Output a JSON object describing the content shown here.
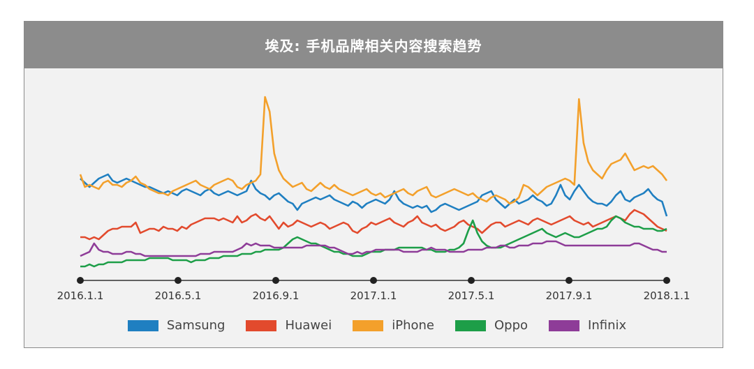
{
  "chart_data": {
    "type": "line",
    "title": "埃及: 手机品牌相关内容搜索趋势",
    "x_ticks": [
      "2016.1.1",
      "2016.5.1",
      "2016.9.1",
      "2017.1.1",
      "2017.5.1",
      "2017.9.1",
      "2018.1.1"
    ],
    "x_range": [
      "2016-01-01",
      "2018-01-01"
    ],
    "ylim": [
      0,
      100
    ],
    "grid": false,
    "legend": "bottom",
    "series": [
      {
        "name": "Samsung",
        "color": "#1f7fc1",
        "values": [
          48,
          46,
          44,
          46,
          48,
          49,
          50,
          47,
          46,
          47,
          48,
          47,
          46,
          45,
          44,
          44,
          43,
          42,
          41,
          42,
          41,
          40,
          42,
          43,
          42,
          41,
          40,
          42,
          43,
          41,
          40,
          41,
          42,
          41,
          40,
          41,
          42,
          47,
          43,
          41,
          40,
          38,
          40,
          41,
          39,
          37,
          36,
          33,
          36,
          37,
          38,
          39,
          38,
          39,
          40,
          38,
          37,
          36,
          35,
          37,
          36,
          34,
          36,
          37,
          38,
          37,
          36,
          38,
          42,
          38,
          36,
          35,
          34,
          35,
          34,
          35,
          32,
          33,
          35,
          36,
          35,
          34,
          33,
          34,
          35,
          36,
          37,
          40,
          41,
          42,
          38,
          36,
          34,
          36,
          38,
          36,
          37,
          38,
          40,
          38,
          37,
          35,
          36,
          40,
          45,
          40,
          38,
          42,
          45,
          42,
          39,
          37,
          36,
          36,
          35,
          37,
          40,
          42,
          38,
          37,
          39,
          40,
          41,
          43,
          40,
          38,
          37,
          30
        ]
      },
      {
        "name": "Huawei",
        "color": "#e24a2d",
        "values": [
          20,
          20,
          19,
          20,
          19,
          21,
          23,
          24,
          24,
          25,
          25,
          25,
          27,
          22,
          23,
          24,
          24,
          23,
          25,
          24,
          24,
          23,
          25,
          24,
          26,
          27,
          28,
          29,
          29,
          29,
          28,
          29,
          28,
          27,
          30,
          27,
          28,
          30,
          31,
          29,
          28,
          30,
          27,
          24,
          27,
          25,
          26,
          28,
          27,
          26,
          25,
          26,
          27,
          26,
          24,
          25,
          26,
          27,
          26,
          23,
          22,
          24,
          25,
          27,
          26,
          27,
          28,
          29,
          27,
          26,
          25,
          27,
          28,
          30,
          27,
          26,
          25,
          26,
          24,
          23,
          24,
          25,
          27,
          28,
          26,
          25,
          24,
          22,
          24,
          26,
          27,
          27,
          25,
          26,
          27,
          28,
          27,
          26,
          28,
          29,
          28,
          27,
          26,
          27,
          28,
          29,
          30,
          28,
          27,
          26,
          27,
          25,
          26,
          27,
          28,
          29,
          30,
          29,
          28,
          31,
          33,
          32,
          31,
          29,
          27,
          25,
          24,
          23
        ]
      },
      {
        "name": "iPhone",
        "color": "#f3a02b",
        "values": [
          50,
          44,
          45,
          44,
          43,
          46,
          47,
          45,
          45,
          44,
          46,
          47,
          49,
          46,
          45,
          43,
          42,
          41,
          41,
          40,
          42,
          43,
          44,
          45,
          46,
          47,
          45,
          44,
          43,
          45,
          46,
          47,
          48,
          47,
          44,
          43,
          45,
          46,
          47,
          50,
          87,
          80,
          60,
          52,
          48,
          46,
          44,
          45,
          46,
          43,
          42,
          44,
          46,
          44,
          43,
          45,
          43,
          42,
          41,
          40,
          41,
          42,
          43,
          41,
          40,
          41,
          39,
          40,
          41,
          42,
          43,
          41,
          40,
          42,
          43,
          44,
          40,
          39,
          40,
          41,
          42,
          43,
          42,
          41,
          40,
          41,
          39,
          38,
          37,
          39,
          40,
          39,
          38,
          36,
          37,
          39,
          45,
          44,
          42,
          40,
          42,
          44,
          45,
          46,
          47,
          48,
          47,
          45,
          86,
          65,
          56,
          52,
          50,
          48,
          52,
          55,
          56,
          57,
          60,
          56,
          52,
          53,
          54,
          53,
          54,
          52,
          50,
          47
        ]
      },
      {
        "name": "Oppo",
        "color": "#1d9e48",
        "values": [
          6,
          6,
          7,
          6,
          7,
          7,
          8,
          8,
          8,
          8,
          9,
          9,
          9,
          9,
          9,
          10,
          10,
          10,
          10,
          10,
          9,
          9,
          9,
          9,
          8,
          9,
          9,
          9,
          10,
          10,
          10,
          11,
          11,
          11,
          11,
          12,
          12,
          12,
          13,
          13,
          14,
          14,
          14,
          14,
          15,
          17,
          19,
          20,
          19,
          18,
          17,
          17,
          16,
          15,
          14,
          13,
          13,
          12,
          12,
          11,
          11,
          11,
          12,
          13,
          13,
          13,
          14,
          14,
          14,
          15,
          15,
          15,
          15,
          15,
          15,
          14,
          14,
          13,
          13,
          13,
          14,
          14,
          15,
          17,
          23,
          28,
          22,
          18,
          16,
          15,
          15,
          15,
          16,
          17,
          18,
          19,
          20,
          21,
          22,
          23,
          24,
          22,
          21,
          20,
          21,
          22,
          21,
          20,
          20,
          21,
          22,
          23,
          24,
          24,
          25,
          28,
          30,
          29,
          27,
          26,
          25,
          25,
          24,
          24,
          24,
          23,
          23,
          24
        ]
      },
      {
        "name": "Infinix",
        "color": "#8e3c98",
        "values": [
          11,
          12,
          13,
          17,
          14,
          13,
          13,
          12,
          12,
          12,
          13,
          13,
          12,
          12,
          11,
          11,
          11,
          11,
          11,
          11,
          11,
          11,
          11,
          11,
          11,
          11,
          12,
          12,
          12,
          13,
          13,
          13,
          13,
          13,
          14,
          15,
          17,
          16,
          17,
          16,
          16,
          16,
          15,
          15,
          15,
          15,
          15,
          15,
          15,
          16,
          16,
          16,
          16,
          16,
          15,
          15,
          14,
          13,
          12,
          12,
          13,
          12,
          13,
          13,
          14,
          14,
          14,
          14,
          14,
          14,
          13,
          13,
          13,
          13,
          14,
          14,
          15,
          14,
          14,
          14,
          13,
          13,
          13,
          13,
          14,
          14,
          14,
          14,
          15,
          15,
          15,
          16,
          16,
          15,
          15,
          16,
          16,
          16,
          17,
          17,
          17,
          18,
          18,
          18,
          17,
          16,
          16,
          16,
          16,
          16,
          16,
          16,
          16,
          16,
          16,
          16,
          16,
          16,
          16,
          16,
          17,
          17,
          16,
          15,
          14,
          14,
          13,
          13
        ]
      }
    ]
  }
}
